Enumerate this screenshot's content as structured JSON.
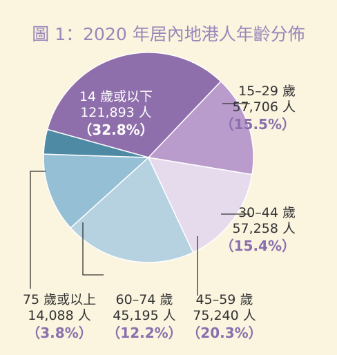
{
  "chart_data": {
    "type": "pie",
    "title": "圖 1：2020 年居內地港人年齡分佈",
    "colors": {
      "label_text": "#333333",
      "percent_text": "#8a6fad",
      "title_text": "#9a86b8",
      "background": "#fbf4df"
    },
    "slices": [
      {
        "name": "14 歲或以下",
        "count": "121,893 人",
        "value": 32.8,
        "percent_label": "32.8%",
        "color": "#8e6fab"
      },
      {
        "name": "15–29 歲",
        "count": "57,706 人",
        "value": 15.5,
        "percent_label": "15.5%",
        "color": "#b99bcc"
      },
      {
        "name": "30–44 歲",
        "count": "57,258 人",
        "value": 15.4,
        "percent_label": "15.4%",
        "color": "#e6dbec"
      },
      {
        "name": "45–59 歲",
        "count": "75,240 人",
        "value": 20.3,
        "percent_label": "20.3%",
        "color": "#b6d2e1"
      },
      {
        "name": "60–74 歲",
        "count": "45,195 人",
        "value": 12.2,
        "percent_label": "12.2%",
        "color": "#94bfd4"
      },
      {
        "name": "75 歲或以上",
        "count": "14,088 人",
        "value": 3.8,
        "percent_label": "3.8%",
        "color": "#4f8aa5"
      }
    ]
  }
}
